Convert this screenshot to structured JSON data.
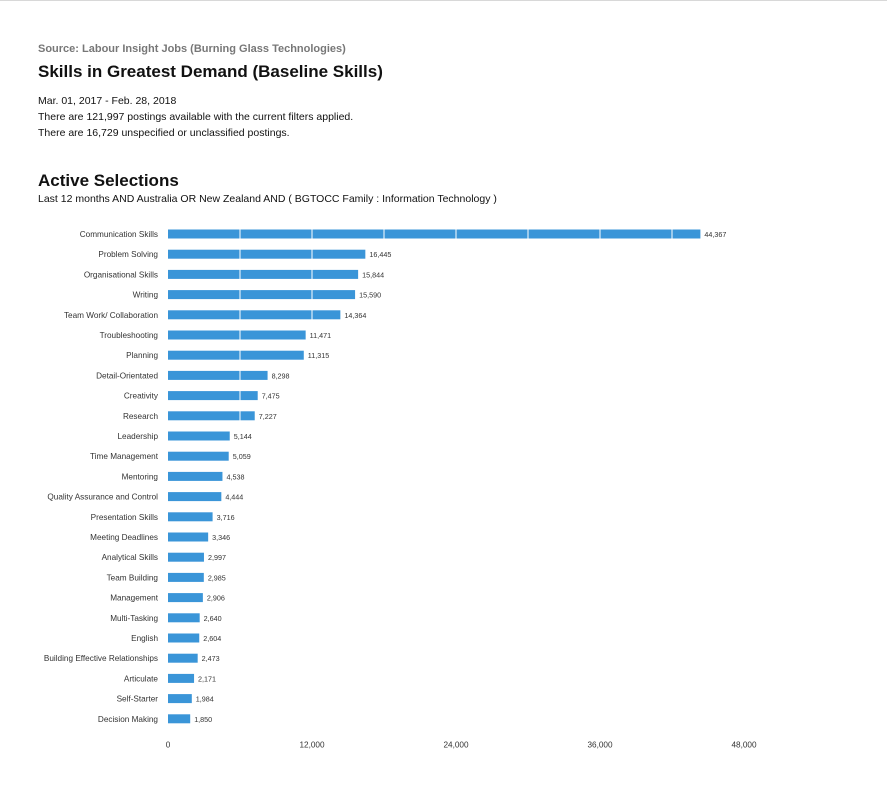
{
  "header": {
    "source": "Source: Labour Insight Jobs (Burning Glass Technologies)",
    "title": "Skills in Greatest Demand (Baseline Skills)",
    "date_range": "Mar.  01, 2017  - Feb.  28, 2018",
    "postings_line": "There are 121,997 postings available with the current filters applied.",
    "unspecified_line": "There are 16,729 unspecified or unclassified postings."
  },
  "selections": {
    "title": "Active Selections",
    "text": "Last 12 months AND Australia OR New Zealand AND ( BGTOCC Family : Information Technology )"
  },
  "chart_data": {
    "type": "bar",
    "orientation": "horizontal",
    "title": "",
    "xlabel": "",
    "ylabel": "",
    "xlim": [
      0,
      48000
    ],
    "xticks": [
      0,
      12000,
      24000,
      36000,
      48000
    ],
    "xtick_labels": [
      "0",
      "12,000",
      "24,000",
      "36,000",
      "48,000"
    ],
    "grid": "vertical",
    "bar_color": "#3a95d8",
    "categories": [
      "Communication Skills",
      "Problem Solving",
      "Organisational Skills",
      "Writing",
      "Team Work/ Collaboration",
      "Troubleshooting",
      "Planning",
      "Detail-Orientated",
      "Creativity",
      "Research",
      "Leadership",
      "Time Management",
      "Mentoring",
      "Quality Assurance and Control",
      "Presentation Skills",
      "Meeting Deadlines",
      "Analytical Skills",
      "Team Building",
      "Management",
      "Multi-Tasking",
      "English",
      "Building Effective Relationships",
      "Articulate",
      "Self-Starter",
      "Decision Making"
    ],
    "values": [
      44367,
      16445,
      15844,
      15590,
      14364,
      11471,
      11315,
      8298,
      7475,
      7227,
      5144,
      5059,
      4538,
      4444,
      3716,
      3346,
      2997,
      2985,
      2906,
      2640,
      2604,
      2473,
      2171,
      1984,
      1850
    ],
    "value_labels": [
      "44,367",
      "16,445",
      "15,844",
      "15,590",
      "14,364",
      "11,471",
      "11,315",
      "8,298",
      "7,475",
      "7,227",
      "5,144",
      "5,059",
      "4,538",
      "4,444",
      "3,716",
      "3,346",
      "2,997",
      "2,985",
      "2,906",
      "2,640",
      "2,604",
      "2,473",
      "2,171",
      "1,984",
      "1,850"
    ]
  }
}
